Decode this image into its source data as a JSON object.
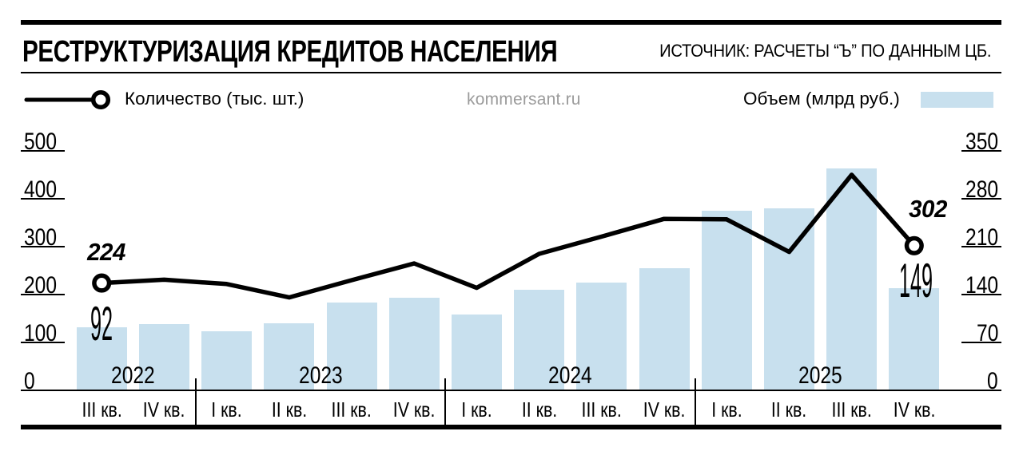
{
  "header": {
    "title": "РЕСТРУКТУРИЗАЦИЯ КРЕДИТОВ НАСЕЛЕНИЯ",
    "source": "ИСТОЧНИК: РАСЧЕТЫ “Ъ” ПО ДАННЫМ ЦБ."
  },
  "legend": {
    "line_label": "Количество (тыс. шт.)",
    "bar_label": "Объем (млрд руб.)"
  },
  "watermark": "kommersant.ru",
  "colors": {
    "bar": "#c8e0ee",
    "line": "#000000",
    "marker_fill": "#ffffff",
    "watermark": "#9b9b9b"
  },
  "chart_data": {
    "type": "combo",
    "title": "РЕСТРУКТУРИЗАЦИЯ КРЕДИТОВ НАСЕЛЕНИЯ",
    "categories": [
      "III кв.",
      "IV кв.",
      "I кв.",
      "II кв.",
      "III кв.",
      "IV кв.",
      "I кв.",
      "II кв.",
      "III кв.",
      "IV кв.",
      "I кв.",
      "II кв.",
      "III кв.",
      "IV кв."
    ],
    "year_groups": [
      {
        "label": "2022",
        "from": 0,
        "to": 1
      },
      {
        "label": "2023",
        "from": 2,
        "to": 5
      },
      {
        "label": "2024",
        "from": 6,
        "to": 9
      },
      {
        "label": "2025",
        "from": 10,
        "to": 13
      }
    ],
    "series": [
      {
        "name": "Количество (тыс. шт.)",
        "type": "line",
        "axis": "left",
        "values": [
          224,
          231,
          222,
          194,
          230,
          265,
          214,
          285,
          321,
          358,
          357,
          289,
          450,
          302
        ],
        "point_labels": {
          "0": "224",
          "13": "302"
        }
      },
      {
        "name": "Объем (млрд руб.)",
        "type": "bar",
        "axis": "right",
        "values": [
          92,
          97,
          86,
          98,
          128,
          135,
          111,
          147,
          157,
          179,
          262,
          266,
          324,
          149
        ],
        "point_labels": {
          "0": "92",
          "13": "149"
        }
      }
    ],
    "left_axis": {
      "ticks": [
        500,
        400,
        300,
        200,
        100,
        0
      ],
      "range": [
        0,
        500
      ]
    },
    "right_axis": {
      "ticks": [
        350,
        280,
        210,
        140,
        70,
        0
      ],
      "range": [
        0,
        350
      ]
    },
    "grid": "off",
    "legend_position": "top"
  }
}
